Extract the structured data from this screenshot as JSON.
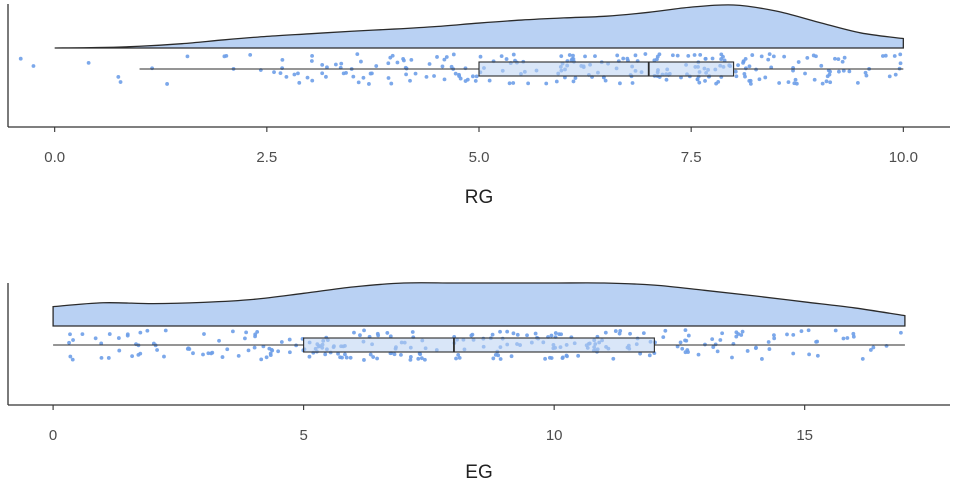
{
  "chart_data": [
    {
      "type": "raincloud",
      "xlabel": "RG",
      "ticks": [
        0.0,
        2.5,
        5.0,
        7.5,
        10.0
      ],
      "tick_labels": [
        "0.0",
        "2.5",
        "5.0",
        "7.5",
        "10.0"
      ],
      "xlim": [
        -0.55,
        10.55
      ],
      "color": "#6e9ee8",
      "fill_color": "#b9d1f3",
      "box": {
        "whisker_low": 1,
        "q1": 5,
        "median": 7,
        "q3": 8,
        "whisker_high": 10
      },
      "density": {
        "x": [
          0.0,
          0.5,
          1.0,
          1.5,
          2.0,
          2.5,
          3.0,
          3.5,
          4.0,
          4.5,
          5.0,
          5.5,
          6.0,
          6.5,
          7.0,
          7.5,
          8.0,
          8.5,
          9.0,
          9.5,
          10.0
        ],
        "y": [
          0.0,
          0.01,
          0.04,
          0.1,
          0.19,
          0.27,
          0.33,
          0.39,
          0.44,
          0.5,
          0.58,
          0.65,
          0.7,
          0.74,
          0.83,
          0.95,
          1.0,
          0.86,
          0.6,
          0.35,
          0.22
        ]
      },
      "outliers": [
        -0.4,
        -0.25,
        0.4,
        0.75
      ],
      "n_points": 260
    },
    {
      "type": "raincloud",
      "xlabel": "EG",
      "ticks": [
        0,
        5,
        10,
        15
      ],
      "tick_labels": [
        "0",
        "5",
        "10",
        "15"
      ],
      "xlim": [
        -0.9,
        17.9
      ],
      "color": "#6e9ee8",
      "fill_color": "#b9d1f3",
      "box": {
        "whisker_low": 0,
        "q1": 5,
        "median": 8,
        "q3": 12,
        "whisker_high": 17
      },
      "density": {
        "x": [
          0,
          1,
          2,
          3,
          4,
          5,
          6,
          7,
          8,
          9,
          10,
          11,
          12,
          13,
          14,
          15,
          16,
          17
        ],
        "y": [
          0.45,
          0.54,
          0.52,
          0.55,
          0.62,
          0.76,
          0.91,
          1.0,
          1.0,
          1.0,
          1.0,
          1.0,
          0.95,
          0.83,
          0.7,
          0.56,
          0.42,
          0.24
        ]
      },
      "outliers": [],
      "n_points": 270
    }
  ]
}
